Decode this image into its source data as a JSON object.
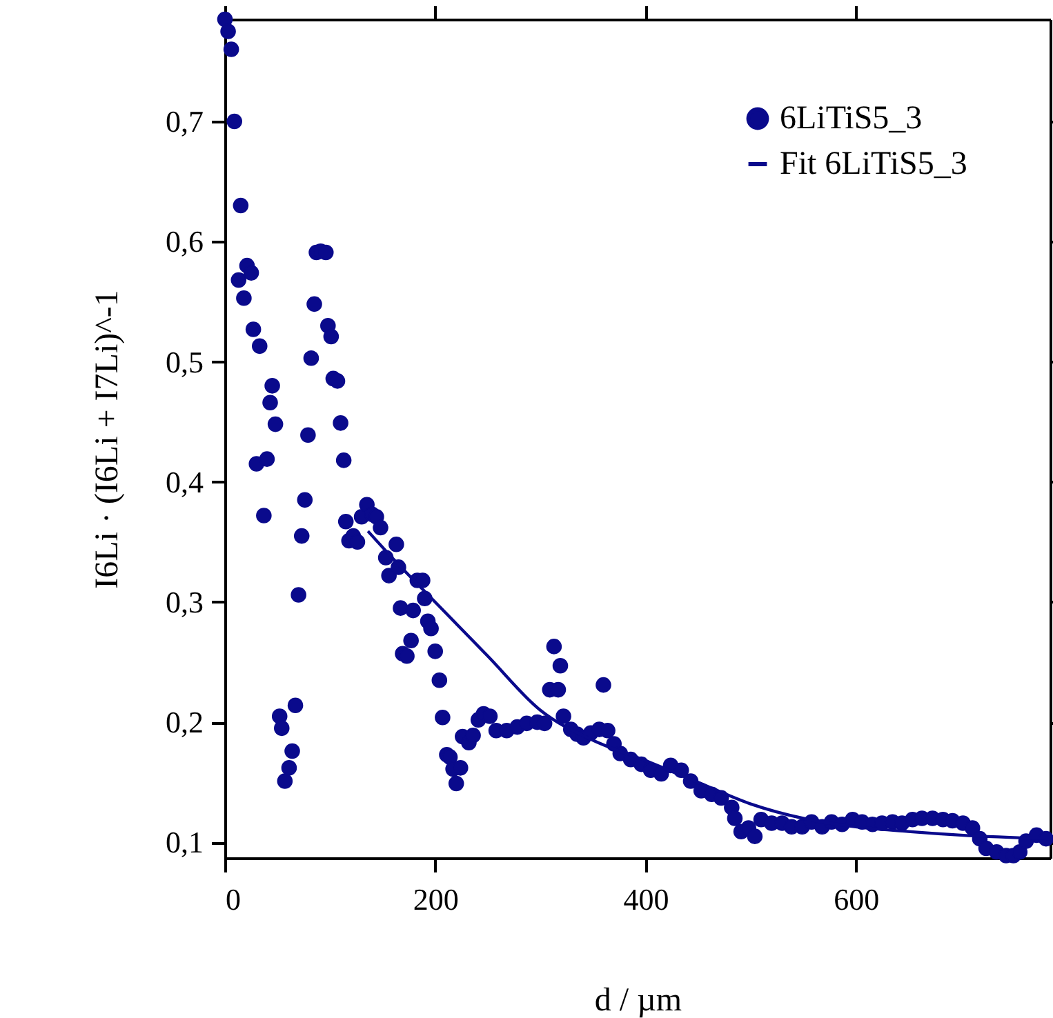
{
  "chart_data": {
    "type": "scatter",
    "xlabel": "d / µm",
    "ylabel": "I6Li · (I6Li + I7Li)^-1",
    "xlim": [
      0,
      785
    ],
    "ylim": [
      0.087,
      0.785
    ],
    "xticks": [
      0,
      200,
      400,
      600
    ],
    "yticks": [
      {
        "value": 0.1,
        "label": "0,1"
      },
      {
        "value": 0.2,
        "label": "0,2"
      },
      {
        "value": 0.3,
        "label": "0,3"
      },
      {
        "value": 0.4,
        "label": "0,4"
      },
      {
        "value": 0.5,
        "label": "0,5"
      },
      {
        "value": 0.6,
        "label": "0,6"
      },
      {
        "value": 0.7,
        "label": "0,7"
      }
    ],
    "grid": false,
    "legend": "top right",
    "series": [
      {
        "name": "6LiTiS5_3",
        "color": "#0a0a8c",
        "marker": "circle",
        "x": [
          0,
          3,
          6,
          9,
          15,
          13,
          18,
          21,
          25,
          27,
          33,
          30,
          40,
          37,
          43,
          45,
          48,
          52,
          54,
          57,
          61,
          64,
          67,
          70,
          73,
          76,
          79,
          82,
          85,
          87,
          91,
          96,
          98,
          101,
          103,
          107,
          110,
          113,
          115,
          118,
          122,
          126,
          130,
          135,
          140,
          144,
          148,
          153,
          156,
          163,
          165,
          167,
          169,
          173,
          177,
          179,
          183,
          188,
          190,
          193,
          196,
          200,
          204,
          207,
          211,
          214,
          217,
          220,
          224,
          226,
          232,
          236,
          241,
          246,
          252,
          258,
          268,
          278,
          287,
          297,
          304,
          309,
          313,
          317,
          319,
          322,
          329,
          335,
          341,
          348,
          356,
          360,
          364,
          370,
          376,
          386,
          396,
          405,
          415,
          424,
          434,
          443,
          453,
          463,
          472,
          482,
          485,
          491,
          498,
          504,
          510,
          520,
          530,
          539,
          549,
          558,
          568,
          577,
          587,
          597,
          606,
          616,
          625,
          635,
          644,
          654,
          663,
          673,
          683,
          692,
          702,
          711,
          718,
          724,
          734,
          743,
          750,
          756,
          762,
          772,
          781
        ],
        "values": [
          0.785,
          0.775,
          0.76,
          0.7,
          0.63,
          0.568,
          0.553,
          0.58,
          0.574,
          0.527,
          0.513,
          0.415,
          0.419,
          0.372,
          0.466,
          0.48,
          0.448,
          0.205,
          0.195,
          0.151,
          0.162,
          0.176,
          0.214,
          0.306,
          0.355,
          0.385,
          0.439,
          0.503,
          0.548,
          0.591,
          0.592,
          0.591,
          0.53,
          0.521,
          0.486,
          0.484,
          0.449,
          0.418,
          0.367,
          0.351,
          0.355,
          0.35,
          0.371,
          0.381,
          0.373,
          0.371,
          0.362,
          0.337,
          0.322,
          0.348,
          0.329,
          0.295,
          0.257,
          0.255,
          0.268,
          0.293,
          0.318,
          0.318,
          0.303,
          0.284,
          0.278,
          0.259,
          0.235,
          0.204,
          0.173,
          0.171,
          0.161,
          0.149,
          0.162,
          0.188,
          0.183,
          0.189,
          0.202,
          0.207,
          0.205,
          0.193,
          0.193,
          0.196,
          0.199,
          0.2,
          0.199,
          0.227,
          0.263,
          0.227,
          0.247,
          0.205,
          0.194,
          0.19,
          0.187,
          0.191,
          0.194,
          0.231,
          0.193,
          0.182,
          0.174,
          0.169,
          0.165,
          0.16,
          0.157,
          0.164,
          0.16,
          0.151,
          0.143,
          0.14,
          0.137,
          0.129,
          0.12,
          0.109,
          0.112,
          0.105,
          0.119,
          0.116,
          0.116,
          0.113,
          0.113,
          0.117,
          0.113,
          0.117,
          0.115,
          0.119,
          0.117,
          0.115,
          0.116,
          0.117,
          0.116,
          0.119,
          0.12,
          0.12,
          0.119,
          0.118,
          0.116,
          0.112,
          0.103,
          0.095,
          0.092,
          0.089,
          0.089,
          0.092,
          0.101,
          0.106,
          0.103
        ]
      },
      {
        "name": "Fit 6LiTiS5_3",
        "type": "line",
        "color": "#0a0a8c",
        "line_style": "solid",
        "x": [
          136,
          160,
          200,
          250,
          300,
          350,
          400,
          450,
          500,
          550,
          600,
          650,
          700,
          785
        ],
        "values": [
          0.359,
          0.336,
          0.3,
          0.255,
          0.21,
          0.185,
          0.168,
          0.15,
          0.132,
          0.12,
          0.113,
          0.109,
          0.106,
          0.103
        ]
      }
    ]
  }
}
